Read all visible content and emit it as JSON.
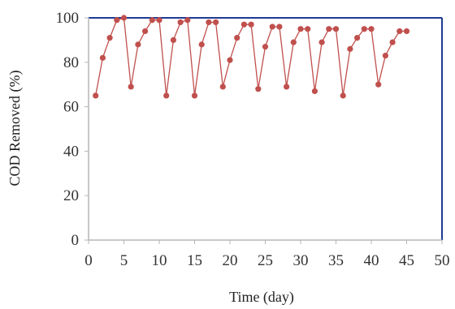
{
  "chart_data": {
    "type": "line",
    "title": "",
    "xlabel": "Time (day)",
    "ylabel": "COD Removed (%)",
    "xlim": [
      0,
      50
    ],
    "ylim": [
      0,
      100
    ],
    "x_ticks": [
      "0",
      "5",
      "10",
      "15",
      "20",
      "25",
      "30",
      "35",
      "40",
      "45",
      "50"
    ],
    "y_ticks": [
      "0",
      "20",
      "40",
      "60",
      "80",
      "100"
    ],
    "grid": false,
    "legend": "none",
    "series": [
      {
        "color": "#c0504d",
        "marker": "circle",
        "x": [
          1,
          2,
          3,
          4,
          5,
          6,
          7,
          8,
          9,
          10,
          11,
          12,
          13,
          14,
          15,
          16,
          17,
          18,
          19,
          20,
          21,
          22,
          23,
          24,
          25,
          26,
          27,
          28,
          29,
          30,
          31,
          32,
          33,
          34,
          35,
          36,
          37,
          38,
          39,
          40,
          41,
          42,
          43,
          44,
          45
        ],
        "y": [
          65,
          82,
          91,
          99,
          100,
          69,
          88,
          94,
          99,
          99,
          65,
          90,
          98,
          99,
          65,
          88,
          98,
          98,
          69,
          81,
          91,
          97,
          97,
          68,
          87,
          96,
          96,
          69,
          89,
          95,
          95,
          67,
          89,
          95,
          95,
          65,
          86,
          91,
          95,
          95,
          70,
          83,
          89,
          94,
          94
        ]
      }
    ]
  },
  "colors": {
    "axis_frame": "#1f3a93",
    "axis_line": "#b5b5b5",
    "series": "#c0504d",
    "text": "#333333"
  }
}
